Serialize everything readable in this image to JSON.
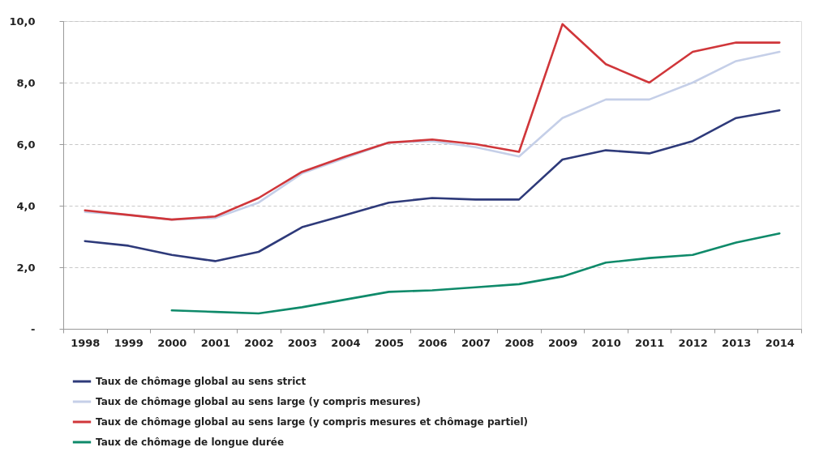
{
  "chart_data": {
    "type": "line",
    "categories": [
      "1998",
      "1999",
      "2000",
      "2001",
      "2002",
      "2003",
      "2004",
      "2005",
      "2006",
      "2007",
      "2008",
      "2009",
      "2010",
      "2011",
      "2012",
      "2013",
      "2014"
    ],
    "series": [
      {
        "name": "Taux de chômage global au sens strict",
        "color": "#2e3a7a",
        "line_style": "solid",
        "values": [
          2.85,
          2.7,
          2.4,
          2.2,
          2.5,
          3.3,
          3.7,
          4.1,
          4.25,
          4.2,
          4.2,
          5.5,
          5.8,
          5.7,
          6.1,
          6.85,
          7.1
        ]
      },
      {
        "name": "Taux de chômage global au sens large (y compris mesures)",
        "color": "#c5cfe8",
        "line_style": "solid",
        "values": [
          3.8,
          3.7,
          3.55,
          3.6,
          4.1,
          5.05,
          5.55,
          6.05,
          6.1,
          5.9,
          5.6,
          6.85,
          7.45,
          7.45,
          8.0,
          8.7,
          9.0
        ]
      },
      {
        "name": "Taux de chômage global au sens large (y compris mesures et chômage partiel)",
        "color": "#d0363a",
        "line_style": "solid",
        "values": [
          3.85,
          3.7,
          3.55,
          3.65,
          4.25,
          5.1,
          5.6,
          6.05,
          6.15,
          6.0,
          5.75,
          9.9,
          8.6,
          8.0,
          9.0,
          9.3,
          9.3
        ]
      },
      {
        "name": "Taux de chômage de longue durée",
        "color": "#0f8a6a",
        "line_style": "solid",
        "values": [
          null,
          null,
          0.6,
          0.55,
          0.5,
          0.7,
          0.95,
          1.2,
          1.25,
          1.35,
          1.45,
          1.7,
          2.15,
          2.3,
          2.4,
          2.8,
          3.1
        ]
      }
    ],
    "ylim": [
      0,
      10
    ],
    "yticks": [
      {
        "value": 0,
        "label": "-"
      },
      {
        "value": 2,
        "label": "2,0"
      },
      {
        "value": 4,
        "label": "4,0"
      },
      {
        "value": 6,
        "label": "6,0"
      },
      {
        "value": 8,
        "label": "8,0"
      },
      {
        "value": 10,
        "label": "10,0"
      }
    ],
    "grid": "y",
    "legend": "bottom",
    "marker": "none"
  }
}
